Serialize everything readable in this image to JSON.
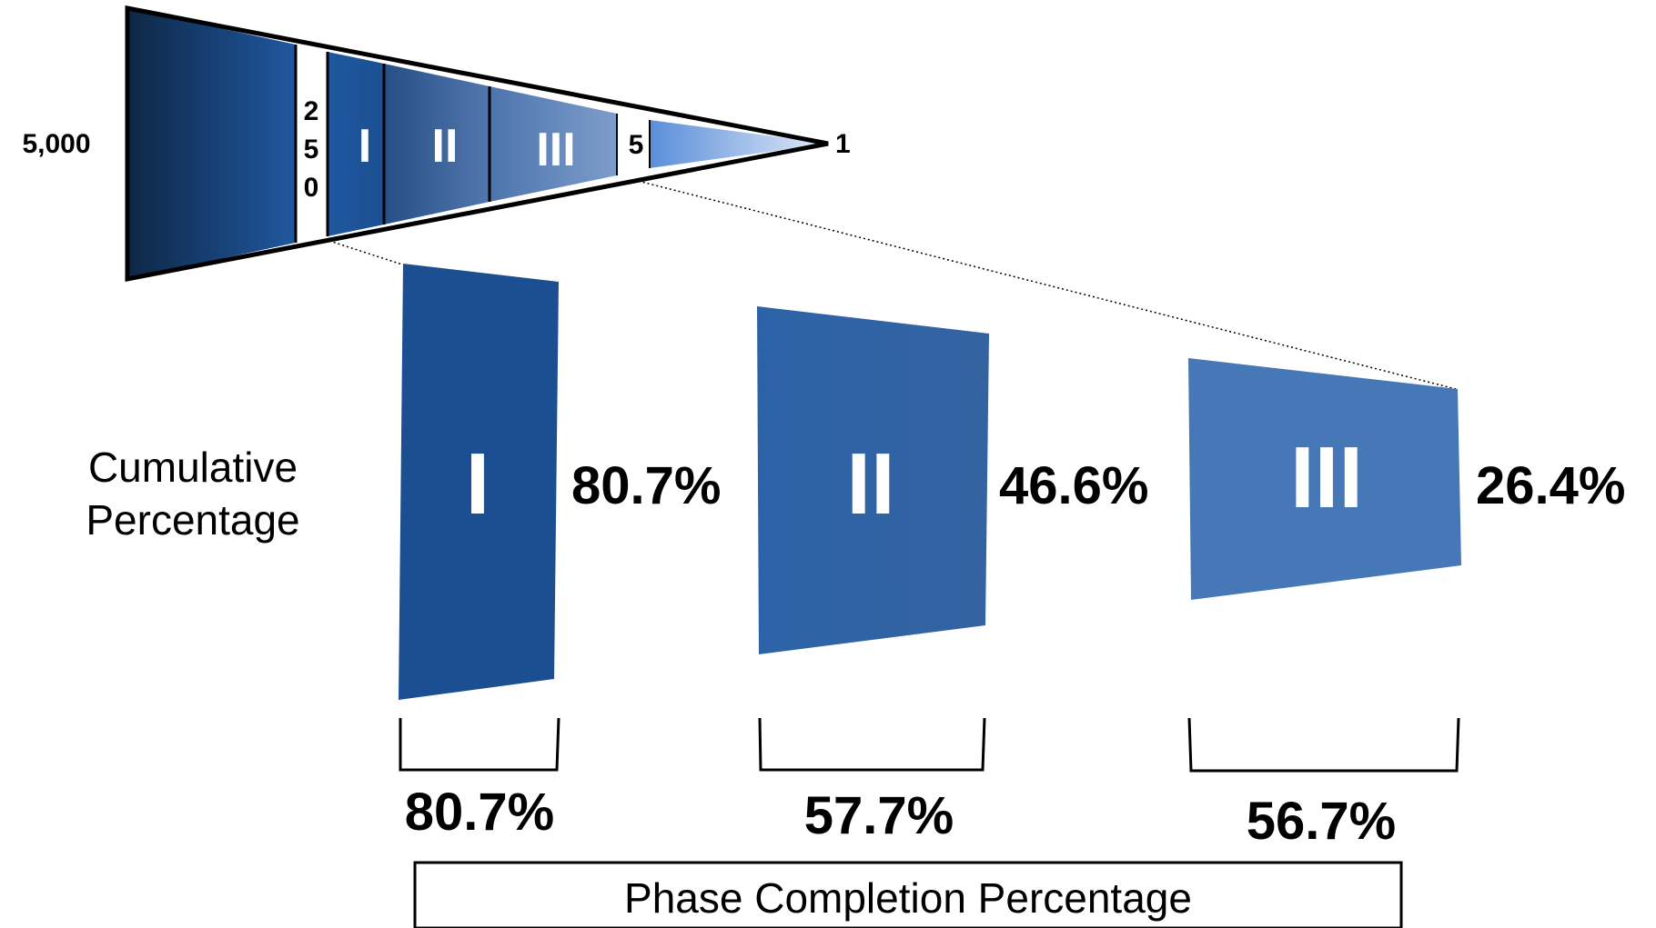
{
  "funnel": {
    "start_count": "5,000",
    "preclinical_count_digits": [
      "2",
      "5",
      "0"
    ],
    "phase_labels": [
      "I",
      "II",
      "III"
    ],
    "submission_count": "5",
    "end_count": "1"
  },
  "phases": [
    {
      "roman": "I",
      "cumulative": "80.7%",
      "completion": "80.7%"
    },
    {
      "roman": "II",
      "cumulative": "46.6%",
      "completion": "57.7%"
    },
    {
      "roman": "III",
      "cumulative": "26.4%",
      "completion": "56.7%"
    }
  ],
  "labels": {
    "cumulative_line1": "Cumulative",
    "cumulative_line2": "Percentage",
    "phase_completion": "Phase Completion Percentage"
  },
  "colors": {
    "dark_navy": "#0e2745",
    "phase1_blue": "#1f58a0",
    "phase2_blue": "#2e64a6",
    "phase3_blue": "#4677b6",
    "light_blue": "#dfe8f7"
  }
}
